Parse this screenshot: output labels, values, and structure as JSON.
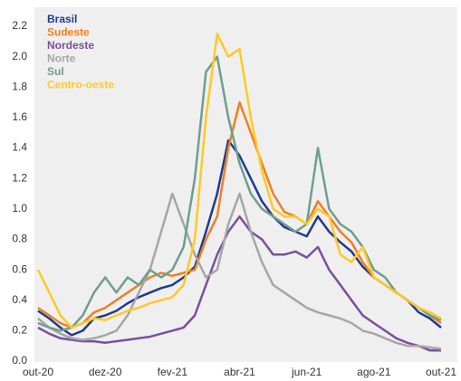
{
  "chart_data": {
    "type": "line",
    "categories": [
      "out-20",
      null,
      null,
      null,
      null,
      null,
      "dez-20",
      null,
      null,
      null,
      null,
      null,
      "fev-21",
      null,
      null,
      null,
      null,
      null,
      "abr-21",
      null,
      null,
      null,
      null,
      null,
      "jun-21",
      null,
      null,
      null,
      null,
      null,
      "ago-21",
      null,
      null,
      null,
      null,
      null,
      "out-21"
    ],
    "ylim": [
      0,
      2.2
    ],
    "yticks": [
      {
        "value": 0,
        "label": "0.0"
      },
      0.2,
      0.4,
      0.6,
      0.8,
      {
        "value": 1,
        "label": "1.0"
      },
      1.2,
      1.4,
      1.6,
      1.8,
      {
        "value": 2,
        "label": "2.0"
      },
      2.2
    ],
    "legend": "top-left",
    "series": [
      {
        "name": "Brasil",
        "color": "#1f3a93",
        "values": [
          0.33,
          0.28,
          0.22,
          0.17,
          0.2,
          0.28,
          0.3,
          0.33,
          0.38,
          0.42,
          0.45,
          0.48,
          0.5,
          0.55,
          0.62,
          0.85,
          1.1,
          1.45,
          1.35,
          1.2,
          1.05,
          0.95,
          0.88,
          0.85,
          0.82,
          0.95,
          0.85,
          0.78,
          0.72,
          0.62,
          0.55,
          0.5,
          0.45,
          0.4,
          0.32,
          0.28,
          0.22
        ]
      },
      {
        "name": "Sudeste",
        "color": "#f07f22",
        "values": [
          0.35,
          0.3,
          0.25,
          0.22,
          0.25,
          0.32,
          0.35,
          0.4,
          0.45,
          0.5,
          0.55,
          0.58,
          0.56,
          0.58,
          0.6,
          0.8,
          0.95,
          1.4,
          1.7,
          1.5,
          1.3,
          1.1,
          0.98,
          0.95,
          0.9,
          1.05,
          0.95,
          0.85,
          0.78,
          0.65,
          0.55,
          0.5,
          0.45,
          0.4,
          0.35,
          0.3,
          0.25
        ]
      },
      {
        "name": "Nordeste",
        "color": "#7b4fa0",
        "values": [
          0.22,
          0.18,
          0.15,
          0.14,
          0.13,
          0.13,
          0.12,
          0.13,
          0.14,
          0.15,
          0.16,
          0.18,
          0.2,
          0.22,
          0.3,
          0.5,
          0.7,
          0.85,
          0.95,
          0.85,
          0.8,
          0.7,
          0.7,
          0.72,
          0.68,
          0.75,
          0.6,
          0.5,
          0.4,
          0.3,
          0.25,
          0.2,
          0.15,
          0.12,
          0.1,
          0.07,
          0.07
        ]
      },
      {
        "name": "Norte",
        "color": "#a6a6a6",
        "values": [
          0.28,
          0.22,
          0.18,
          0.15,
          0.14,
          0.15,
          0.17,
          0.2,
          0.3,
          0.45,
          0.6,
          0.85,
          1.1,
          0.9,
          0.7,
          0.55,
          0.6,
          0.9,
          1.1,
          0.85,
          0.65,
          0.5,
          0.45,
          0.4,
          0.35,
          0.32,
          0.3,
          0.28,
          0.25,
          0.2,
          0.18,
          0.15,
          0.12,
          0.1,
          0.1,
          0.09,
          0.08
        ]
      },
      {
        "name": "Sul",
        "color": "#6f9e8e",
        "values": [
          0.25,
          0.22,
          0.2,
          0.22,
          0.3,
          0.45,
          0.55,
          0.45,
          0.55,
          0.5,
          0.6,
          0.55,
          0.6,
          0.75,
          1.2,
          1.9,
          2.0,
          1.6,
          1.3,
          1.1,
          1.0,
          0.95,
          0.9,
          0.85,
          0.9,
          1.4,
          1.0,
          0.9,
          0.85,
          0.75,
          0.6,
          0.55,
          0.45,
          0.4,
          0.35,
          0.3,
          0.27
        ]
      },
      {
        "name": "Centro-oeste",
        "color": "#ffc926",
        "values": [
          0.6,
          0.45,
          0.3,
          0.22,
          0.25,
          0.28,
          0.27,
          0.3,
          0.33,
          0.35,
          0.38,
          0.4,
          0.42,
          0.5,
          0.8,
          1.6,
          2.15,
          2.0,
          2.05,
          1.6,
          1.25,
          1.0,
          0.95,
          0.95,
          0.9,
          1.0,
          0.95,
          0.7,
          0.65,
          0.75,
          0.55,
          0.5,
          0.45,
          0.4,
          0.35,
          0.32,
          0.28
        ]
      }
    ]
  }
}
